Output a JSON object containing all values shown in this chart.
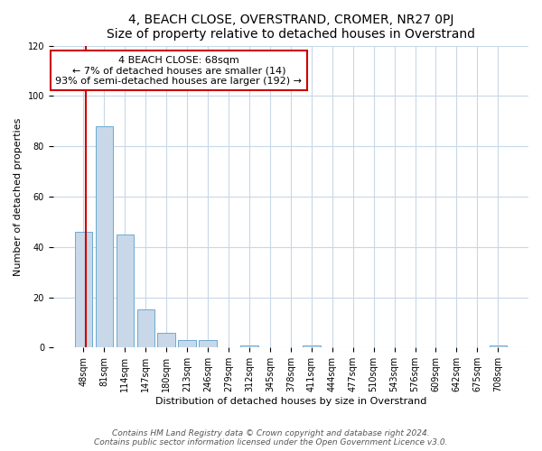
{
  "title": "4, BEACH CLOSE, OVERSTRAND, CROMER, NR27 0PJ",
  "subtitle": "Size of property relative to detached houses in Overstrand",
  "xlabel": "Distribution of detached houses by size in Overstrand",
  "ylabel": "Number of detached properties",
  "bar_labels": [
    "48sqm",
    "81sqm",
    "114sqm",
    "147sqm",
    "180sqm",
    "213sqm",
    "246sqm",
    "279sqm",
    "312sqm",
    "345sqm",
    "378sqm",
    "411sqm",
    "444sqm",
    "477sqm",
    "510sqm",
    "543sqm",
    "576sqm",
    "609sqm",
    "642sqm",
    "675sqm",
    "708sqm"
  ],
  "bar_values": [
    46,
    88,
    45,
    15,
    6,
    3,
    3,
    0,
    1,
    0,
    0,
    1,
    0,
    0,
    0,
    0,
    0,
    0,
    0,
    0,
    1
  ],
  "bar_color": "#c8d8e8",
  "bar_edgecolor": "#6aaad4",
  "annotation_box_text": "4 BEACH CLOSE: 68sqm\n← 7% of detached houses are smaller (14)\n93% of semi-detached houses are larger (192) →",
  "vline_color": "#cc0000",
  "box_edgecolor": "#cc0000",
  "ylim": [
    0,
    120
  ],
  "yticks": [
    0,
    20,
    40,
    60,
    80,
    100,
    120
  ],
  "footer_line1": "Contains HM Land Registry data © Crown copyright and database right 2024.",
  "footer_line2": "Contains public sector information licensed under the Open Government Licence v3.0.",
  "background_color": "#ffffff",
  "grid_color": "#c8d8e8",
  "title_fontsize": 10,
  "axis_label_fontsize": 8,
  "tick_fontsize": 7,
  "footer_fontsize": 6.5,
  "annotation_fontsize": 8
}
